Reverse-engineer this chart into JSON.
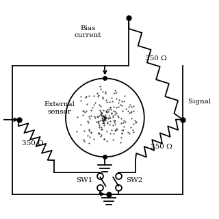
{
  "bg_color": "#ffffff",
  "line_color": "#000000",
  "labels": {
    "bias_current": "Bias\ncurrent",
    "external_sensor": "External\nsensor",
    "signal": "Signal ",
    "sw1": "SW1",
    "sw2": "SW2",
    "r_top_right": "350 Ω",
    "r_left": "350 Ω",
    "r_bottom_right": "350 Ω"
  },
  "font_size": 7.5
}
